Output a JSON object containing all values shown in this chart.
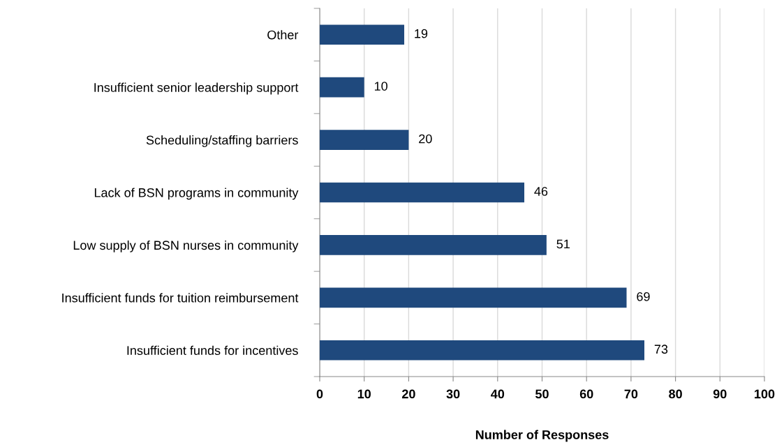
{
  "chart_data": {
    "type": "bar",
    "orientation": "horizontal",
    "xlabel": "Number of Responses",
    "categories": [
      "Other",
      "Insufficient senior leadership support",
      "Scheduling/staffing barriers",
      "Lack of BSN programs in community",
      "Low supply of BSN nurses in community",
      "Insufficient funds for tuition reimbursement",
      "Insufficient funds for incentives"
    ],
    "values": [
      19,
      10,
      20,
      46,
      51,
      69,
      73
    ],
    "color": "#1f497d",
    "data_labels": true,
    "xlim": [
      0,
      100
    ],
    "xticks": [
      0,
      10,
      20,
      30,
      40,
      50,
      60,
      70,
      80,
      90,
      100
    ],
    "grid": "x",
    "legend": false
  }
}
